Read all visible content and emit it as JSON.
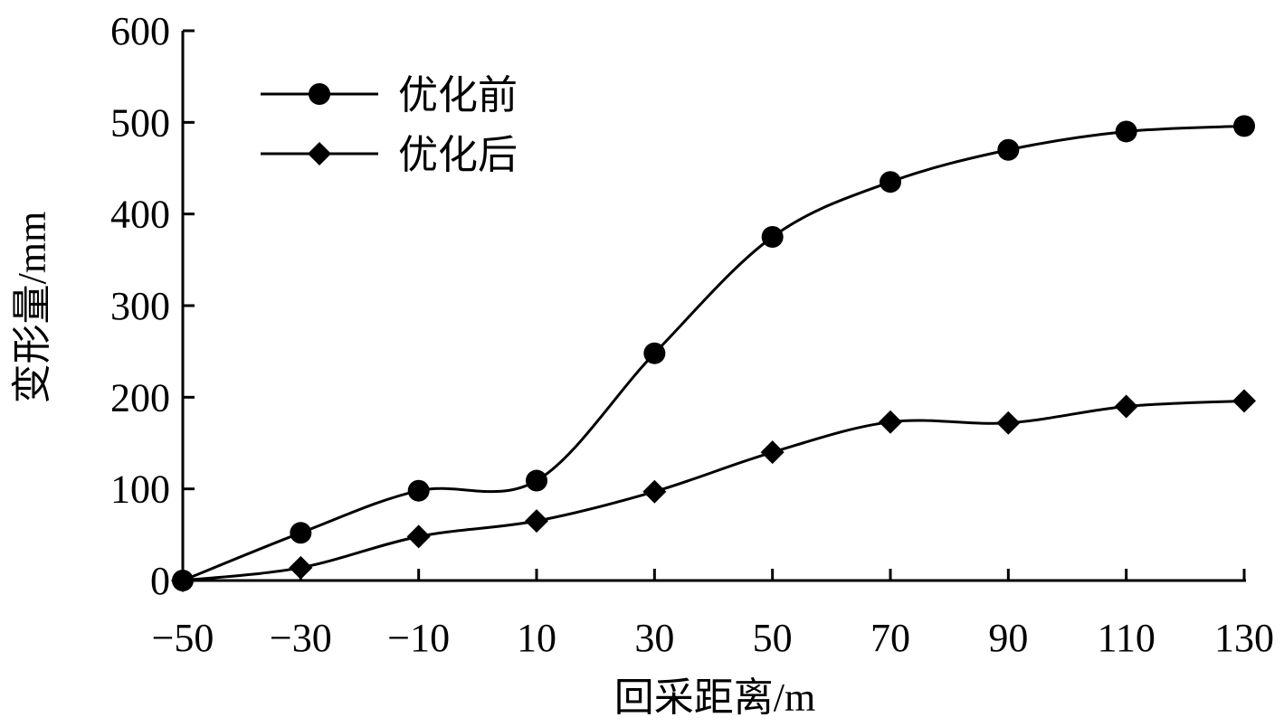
{
  "chart_data": {
    "type": "line",
    "smooth": true,
    "x": [
      -50,
      -30,
      -10,
      10,
      30,
      50,
      70,
      90,
      110,
      130
    ],
    "xticks": [
      "−50",
      "−30",
      "−10",
      "10",
      "30",
      "50",
      "70",
      "90",
      "110",
      "130"
    ],
    "xlabel": "回采距离/m",
    "ylabel": "变形量/mm",
    "ylim": [
      0,
      600
    ],
    "yticks": [
      "0",
      "100",
      "200",
      "300",
      "400",
      "500",
      "600"
    ],
    "grid": false,
    "legend_position": "top-left",
    "series": [
      {
        "name": "优化前",
        "marker": "circle",
        "color": "#000000",
        "values": [
          0,
          52,
          98,
          109,
          248,
          375,
          435,
          470,
          490,
          496
        ]
      },
      {
        "name": "优化后",
        "marker": "diamond",
        "color": "#000000",
        "values": [
          0,
          14,
          48,
          65,
          97,
          140,
          173,
          172,
          190,
          196
        ]
      }
    ]
  }
}
